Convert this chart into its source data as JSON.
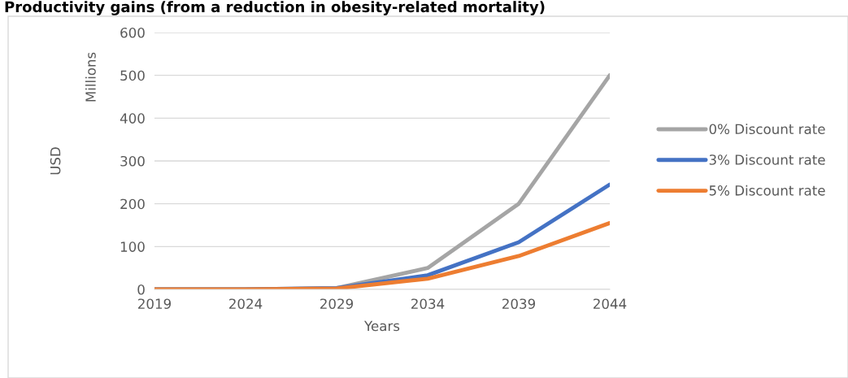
{
  "chart_data": {
    "type": "line",
    "title": "Productivity gains (from a reduction in obesity-related mortality)",
    "xlabel": "Years",
    "ylabel": "USD",
    "annotations": [
      "Millions"
    ],
    "x": [
      2019,
      2024,
      2029,
      2034,
      2039,
      2044
    ],
    "xlim": [
      2019,
      2044
    ],
    "xticks": [
      2019,
      2024,
      2029,
      2034,
      2039,
      2044
    ],
    "ylim": [
      0,
      600
    ],
    "yticks": [
      0,
      100,
      200,
      300,
      400,
      500,
      600
    ],
    "grid": "y",
    "legend": "right",
    "marker": "none",
    "line_style": "solid",
    "series": [
      {
        "name": "0% Discount rate",
        "color": "#a5a5a5",
        "values": [
          0,
          0,
          3,
          50,
          200,
          500
        ]
      },
      {
        "name": "3% Discount rate",
        "color": "#4472c4",
        "values": [
          0,
          0,
          3,
          33,
          110,
          245
        ]
      },
      {
        "name": "5% Discount rate",
        "color": "#ed7d31",
        "values": [
          0,
          0,
          2,
          25,
          78,
          155
        ]
      }
    ]
  }
}
